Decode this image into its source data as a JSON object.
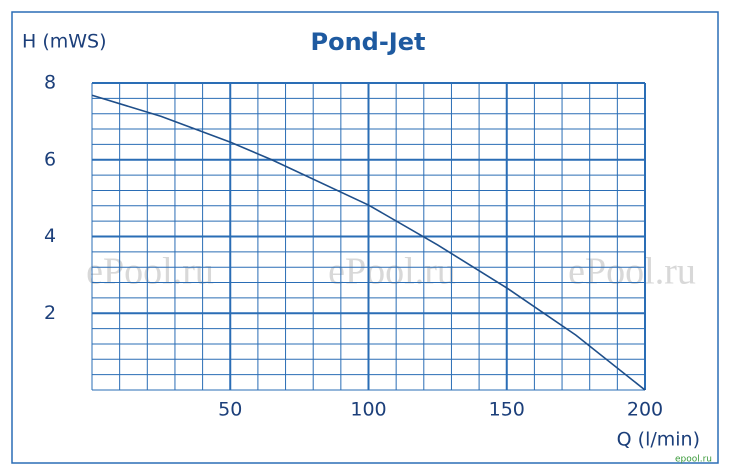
{
  "chart_data": {
    "type": "line",
    "title": "Pond-Jet",
    "y_label": "H (mWS)",
    "x_label": "Q (l/min)",
    "watermark": [
      "ePool.ru",
      "ePool.ru",
      "ePool.ru"
    ],
    "stamp": "epool.ru",
    "x": [
      0,
      25,
      50,
      65,
      100,
      125,
      150,
      175,
      200
    ],
    "series": [
      {
        "name": "Pond-Jet",
        "color": "#1f4f8a",
        "values": [
          7.68,
          7.13,
          6.46,
          6.0,
          4.82,
          3.78,
          2.66,
          1.43,
          0
        ]
      }
    ],
    "xlim": [
      0,
      200
    ],
    "xticks": [
      50,
      100,
      150,
      200
    ],
    "ylim": [
      0,
      8
    ],
    "yticks": [
      2,
      4,
      6,
      8
    ],
    "grid": true,
    "minor_grid_divisions": 5,
    "grid_color": "#2a6db5"
  }
}
